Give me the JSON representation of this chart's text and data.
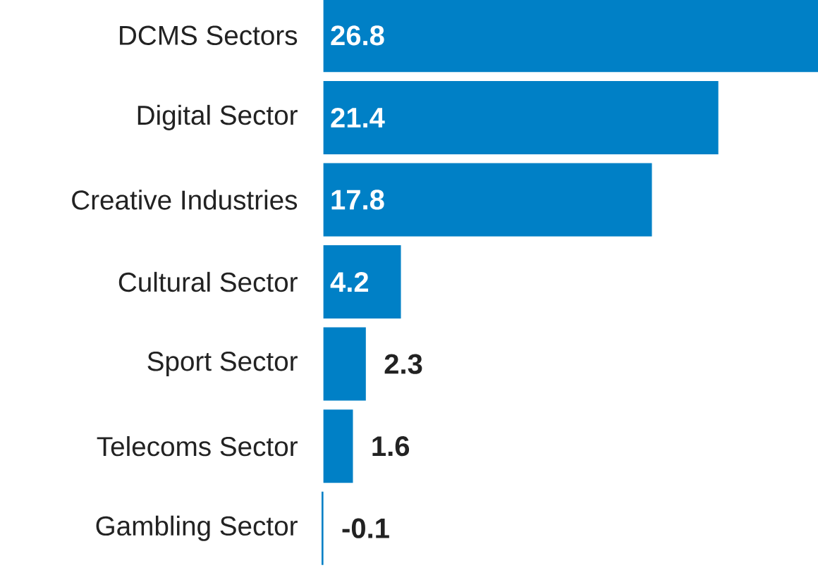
{
  "chart_data": {
    "type": "bar",
    "orientation": "horizontal",
    "categories": [
      "DCMS Sectors",
      "Digital Sector",
      "Creative Industries",
      "Cultural Sector",
      "Sport Sector",
      "Telecoms Sector",
      "Gambling Sector"
    ],
    "values": [
      26.8,
      21.4,
      17.8,
      4.2,
      2.3,
      1.6,
      -0.1
    ],
    "color": "#0080c6",
    "data_labels": true
  }
}
